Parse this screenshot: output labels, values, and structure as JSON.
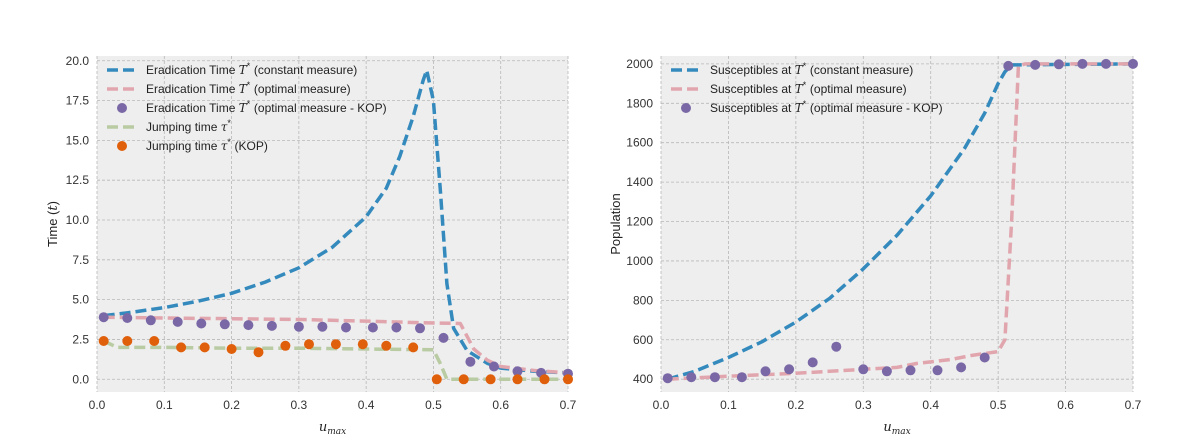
{
  "chart_data": [
    {
      "type": "line",
      "xlabel": "u_max",
      "ylabel": "Time (t)",
      "xlim": [
        0.0,
        0.7
      ],
      "ylim": [
        -0.8,
        20.3
      ],
      "xticks": [
        "0.0",
        "0.1",
        "0.2",
        "0.3",
        "0.4",
        "0.5",
        "0.6",
        "0.7"
      ],
      "yticks": [
        "0.0",
        "2.5",
        "5.0",
        "7.5",
        "10.0",
        "12.5",
        "15.0",
        "17.5",
        "20.0"
      ],
      "grid": true,
      "legend_position": "top-left",
      "series": [
        {
          "name": "Eradication Time T* (constant measure)",
          "style": "dashed-line",
          "color": "#348abd",
          "points": [
            [
              0.01,
              4.0
            ],
            [
              0.05,
              4.2
            ],
            [
              0.1,
              4.5
            ],
            [
              0.15,
              4.9
            ],
            [
              0.2,
              5.4
            ],
            [
              0.25,
              6.1
            ],
            [
              0.3,
              7.0
            ],
            [
              0.35,
              8.3
            ],
            [
              0.4,
              10.2
            ],
            [
              0.43,
              12.0
            ],
            [
              0.45,
              14.0
            ],
            [
              0.47,
              16.5
            ],
            [
              0.485,
              18.8
            ],
            [
              0.49,
              19.4
            ],
            [
              0.5,
              17.5
            ],
            [
              0.51,
              12.0
            ],
            [
              0.52,
              6.0
            ],
            [
              0.53,
              3.2
            ],
            [
              0.55,
              1.8
            ],
            [
              0.58,
              1.0
            ],
            [
              0.6,
              0.7
            ],
            [
              0.65,
              0.5
            ],
            [
              0.7,
              0.4
            ]
          ]
        },
        {
          "name": "Eradication Time T* (optimal measure)",
          "style": "dashed-line",
          "color": "#e1a5ad",
          "points": [
            [
              0.01,
              3.9
            ],
            [
              0.1,
              3.85
            ],
            [
              0.2,
              3.8
            ],
            [
              0.3,
              3.75
            ],
            [
              0.4,
              3.65
            ],
            [
              0.48,
              3.55
            ],
            [
              0.54,
              3.5
            ],
            [
              0.56,
              1.9
            ],
            [
              0.58,
              1.2
            ],
            [
              0.6,
              0.8
            ],
            [
              0.65,
              0.55
            ],
            [
              0.7,
              0.4
            ]
          ]
        },
        {
          "name": "Eradication Time T* (optimal measure - KOP)",
          "style": "markers",
          "color": "#7a68a6",
          "points": [
            [
              0.01,
              3.9
            ],
            [
              0.045,
              3.85
            ],
            [
              0.08,
              3.7
            ],
            [
              0.12,
              3.6
            ],
            [
              0.155,
              3.5
            ],
            [
              0.19,
              3.45
            ],
            [
              0.225,
              3.4
            ],
            [
              0.26,
              3.35
            ],
            [
              0.3,
              3.3
            ],
            [
              0.335,
              3.3
            ],
            [
              0.37,
              3.25
            ],
            [
              0.41,
              3.25
            ],
            [
              0.445,
              3.25
            ],
            [
              0.48,
              3.2
            ],
            [
              0.515,
              2.6
            ],
            [
              0.555,
              1.1
            ],
            [
              0.59,
              0.8
            ],
            [
              0.625,
              0.5
            ],
            [
              0.66,
              0.4
            ],
            [
              0.7,
              0.35
            ]
          ]
        },
        {
          "name": "Jumping time τ*",
          "style": "dashed-line",
          "color": "#b8cba2",
          "points": [
            [
              0.01,
              2.4
            ],
            [
              0.03,
              2.0
            ],
            [
              0.1,
              2.0
            ],
            [
              0.2,
              1.95
            ],
            [
              0.3,
              1.95
            ],
            [
              0.4,
              1.9
            ],
            [
              0.5,
              1.85
            ],
            [
              0.51,
              1.0
            ],
            [
              0.52,
              0.0
            ],
            [
              0.7,
              0.0
            ]
          ]
        },
        {
          "name": "Jumping time τ* (KOP)",
          "style": "markers",
          "color": "#e05f0a",
          "points": [
            [
              0.01,
              2.4
            ],
            [
              0.045,
              2.4
            ],
            [
              0.085,
              2.4
            ],
            [
              0.125,
              2.0
            ],
            [
              0.16,
              2.0
            ],
            [
              0.2,
              1.9
            ],
            [
              0.24,
              1.7
            ],
            [
              0.28,
              2.1
            ],
            [
              0.315,
              2.2
            ],
            [
              0.355,
              2.2
            ],
            [
              0.395,
              2.2
            ],
            [
              0.43,
              2.1
            ],
            [
              0.47,
              2.0
            ],
            [
              0.505,
              0.0
            ],
            [
              0.545,
              0.0
            ],
            [
              0.585,
              0.0
            ],
            [
              0.625,
              0.0
            ],
            [
              0.665,
              0.0
            ],
            [
              0.7,
              0.0
            ]
          ]
        }
      ]
    },
    {
      "type": "line",
      "xlabel": "u_max",
      "ylabel": "Population",
      "xlim": [
        0.0,
        0.7
      ],
      "ylim": [
        335,
        2040
      ],
      "xticks": [
        "0.0",
        "0.1",
        "0.2",
        "0.3",
        "0.4",
        "0.5",
        "0.6",
        "0.7"
      ],
      "yticks": [
        "400",
        "600",
        "800",
        "1000",
        "1200",
        "1400",
        "1600",
        "1800",
        "2000"
      ],
      "grid": true,
      "legend_position": "top-left",
      "series": [
        {
          "name": "Susceptibles at T* (constant measure)",
          "style": "dashed-line",
          "color": "#348abd",
          "points": [
            [
              0.01,
              400
            ],
            [
              0.05,
              440
            ],
            [
              0.1,
              510
            ],
            [
              0.15,
              590
            ],
            [
              0.2,
              690
            ],
            [
              0.25,
              810
            ],
            [
              0.3,
              960
            ],
            [
              0.35,
              1130
            ],
            [
              0.4,
              1330
            ],
            [
              0.45,
              1570
            ],
            [
              0.48,
              1750
            ],
            [
              0.5,
              1900
            ],
            [
              0.51,
              1960
            ],
            [
              0.52,
              1995
            ],
            [
              0.7,
              2000
            ]
          ]
        },
        {
          "name": "Susceptibles at T* (optimal measure)",
          "style": "dashed-line",
          "color": "#e1a5ad",
          "points": [
            [
              0.01,
              400
            ],
            [
              0.1,
              415
            ],
            [
              0.2,
              430
            ],
            [
              0.3,
              450
            ],
            [
              0.35,
              460
            ],
            [
              0.38,
              480
            ],
            [
              0.43,
              500
            ],
            [
              0.46,
              520
            ],
            [
              0.5,
              540
            ],
            [
              0.51,
              600
            ],
            [
              0.52,
              1200
            ],
            [
              0.53,
              1990
            ],
            [
              0.54,
              2000
            ],
            [
              0.7,
              2000
            ]
          ]
        },
        {
          "name": "Susceptibles at T* (optimal measure - KOP)",
          "style": "markers",
          "color": "#7a68a6",
          "points": [
            [
              0.01,
              405
            ],
            [
              0.045,
              410
            ],
            [
              0.08,
              410
            ],
            [
              0.12,
              410
            ],
            [
              0.155,
              440
            ],
            [
              0.19,
              450
            ],
            [
              0.225,
              485
            ],
            [
              0.26,
              565
            ],
            [
              0.3,
              450
            ],
            [
              0.335,
              440
            ],
            [
              0.37,
              445
            ],
            [
              0.41,
              445
            ],
            [
              0.445,
              460
            ],
            [
              0.48,
              510
            ],
            [
              0.515,
              1990
            ],
            [
              0.555,
              1995
            ],
            [
              0.59,
              1998
            ],
            [
              0.625,
              2000
            ],
            [
              0.66,
              2000
            ],
            [
              0.7,
              2000
            ]
          ]
        }
      ]
    }
  ]
}
